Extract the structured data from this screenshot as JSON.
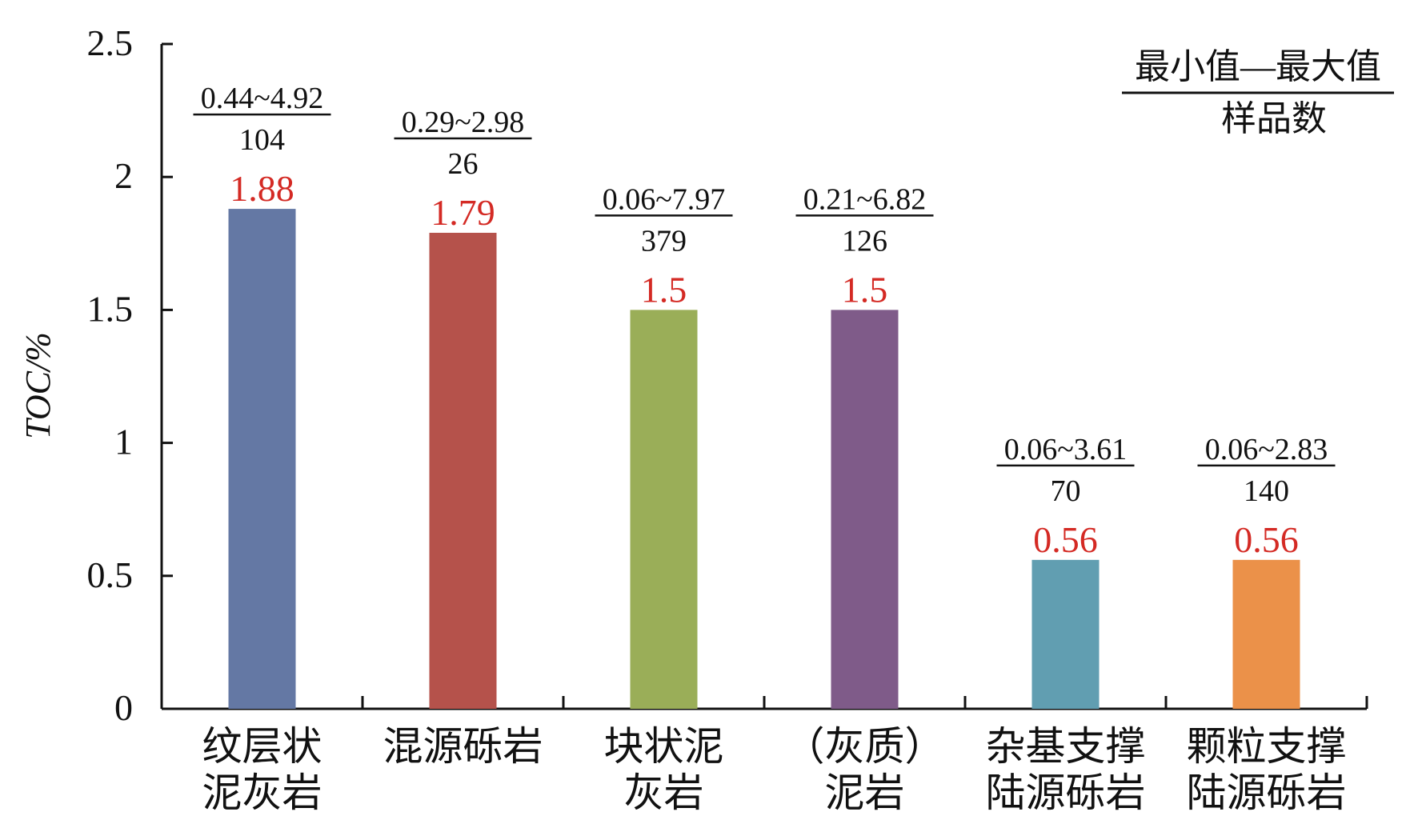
{
  "chart_data": {
    "type": "bar",
    "ylabel": "TOC/%",
    "ylim": [
      0,
      2.5
    ],
    "yticks": [
      "0",
      "0.5",
      "1",
      "1.5",
      "2",
      "2.5"
    ],
    "ytick_values": [
      0,
      0.5,
      1,
      1.5,
      2,
      2.5
    ],
    "categories": [
      [
        "纹层状",
        "泥灰岩"
      ],
      [
        "混源砾岩"
      ],
      [
        "块状泥",
        "灰岩"
      ],
      [
        "（灰质）",
        "泥岩"
      ],
      [
        "杂基支撑",
        "陆源砾岩"
      ],
      [
        "颗粒支撑",
        "陆源砾岩"
      ]
    ],
    "values": [
      1.88,
      1.79,
      1.5,
      1.5,
      0.56,
      0.56
    ],
    "value_labels": [
      "1.88",
      "1.79",
      "1.5",
      "1.5",
      "0.56",
      "0.56"
    ],
    "ranges": [
      "0.44~4.92",
      "0.29~2.98",
      "0.06~7.97",
      "0.21~6.82",
      "0.06~3.61",
      "0.06~2.83"
    ],
    "sample_counts": [
      "104",
      "26",
      "379",
      "126",
      "70",
      "140"
    ],
    "colors": [
      "#6478a4",
      "#b5524b",
      "#9aae58",
      "#7f5b89",
      "#619eb1",
      "#eb9149"
    ],
    "value_label_color": "#d42a24",
    "legend": {
      "numerator": "最小值—最大值",
      "denominator": "样品数",
      "placement": "top-right"
    },
    "grid": false
  }
}
